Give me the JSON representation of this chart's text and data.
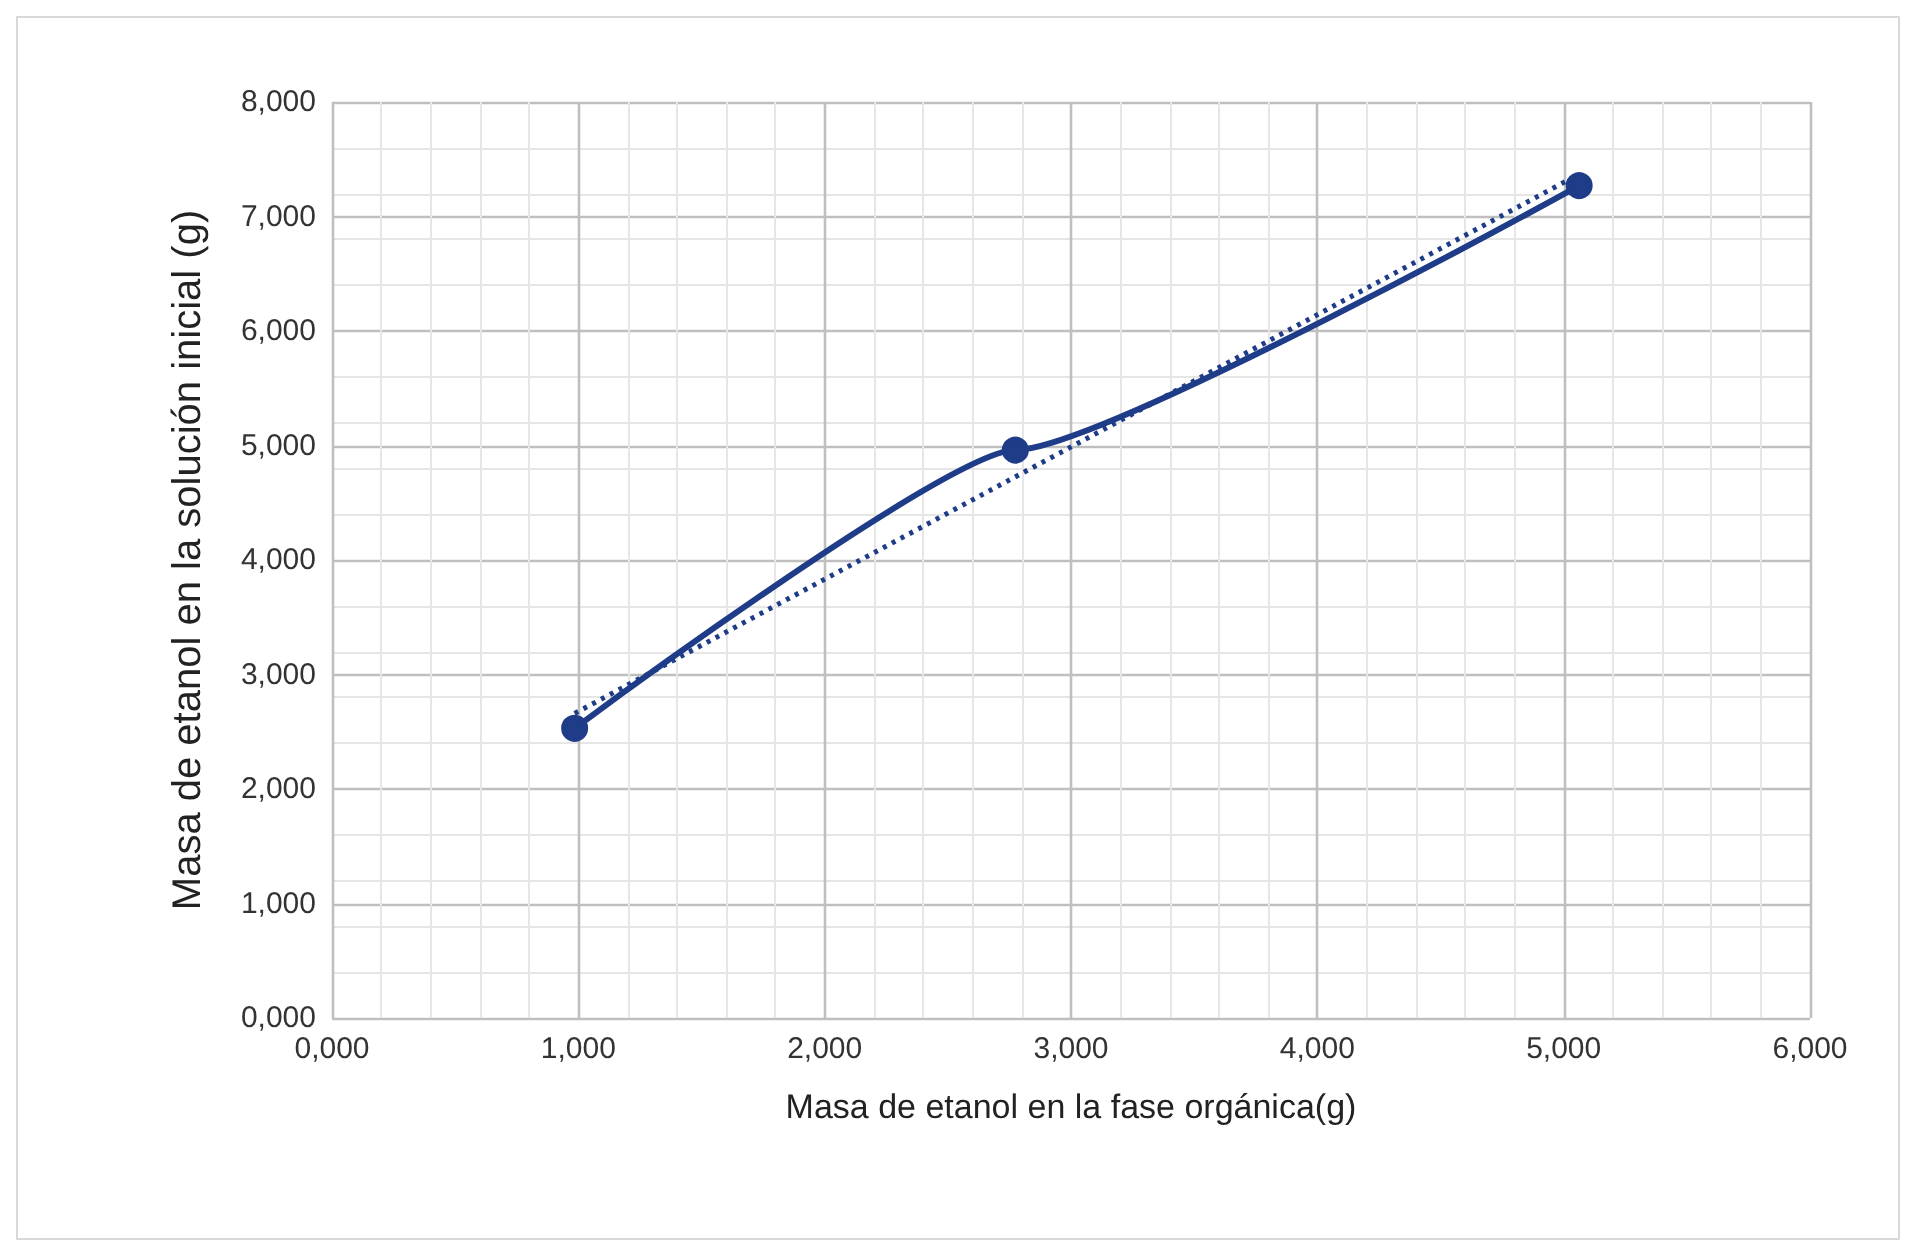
{
  "chart_data": {
    "type": "line",
    "xlabel": "Masa de etanol en la fase orgánica(g)",
    "ylabel": "Masa de etanol en la solución inicial (g)",
    "xlim": [
      0,
      6
    ],
    "ylim": [
      0,
      8
    ],
    "xticks": [
      {
        "value": 0,
        "label": "0,000"
      },
      {
        "value": 1,
        "label": "1,000"
      },
      {
        "value": 2,
        "label": "2,000"
      },
      {
        "value": 3,
        "label": "3,000"
      },
      {
        "value": 4,
        "label": "4,000"
      },
      {
        "value": 5,
        "label": "5,000"
      },
      {
        "value": 6,
        "label": "6,000"
      }
    ],
    "yticks": [
      {
        "value": 0,
        "label": "0,000"
      },
      {
        "value": 1,
        "label": "1,000"
      },
      {
        "value": 2,
        "label": "2,000"
      },
      {
        "value": 3,
        "label": "3,000"
      },
      {
        "value": 4,
        "label": "4,000"
      },
      {
        "value": 5,
        "label": "5,000"
      },
      {
        "value": 6,
        "label": "6,000"
      },
      {
        "value": 7,
        "label": "7,000"
      },
      {
        "value": 8,
        "label": "8,000"
      }
    ],
    "grid": true,
    "series": [
      {
        "color": "#1f3c88",
        "marker": "circle",
        "line_style": "solid",
        "x": [
          0.985,
          2.774,
          5.063
        ],
        "values": [
          2.53,
          4.96,
          7.27
        ]
      },
      {
        "color": "#1f3c88",
        "marker": "none",
        "line_style": "dotted",
        "x": [
          0.985,
          5.063
        ],
        "values": [
          2.66,
          7.37
        ]
      }
    ]
  }
}
